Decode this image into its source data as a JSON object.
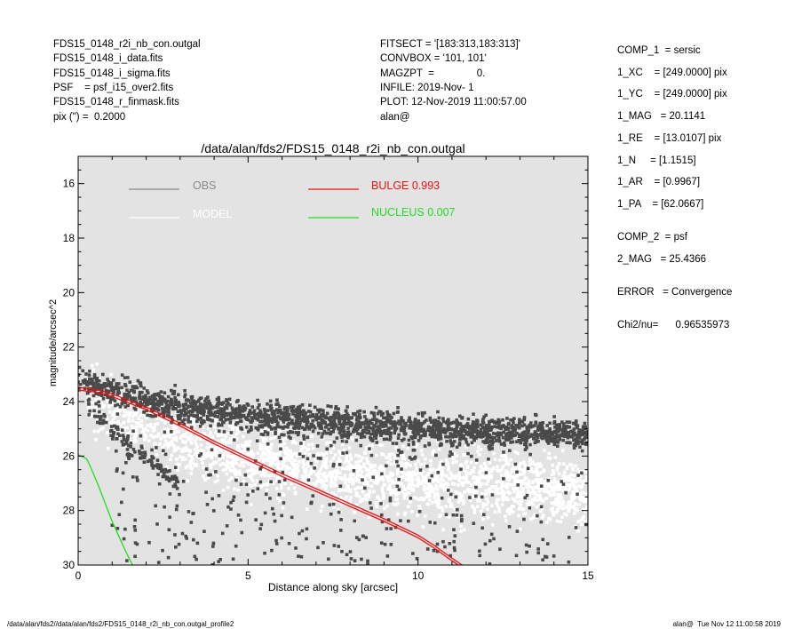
{
  "header_left": [
    "FDS15_0148_r2i_nb_con.outgal",
    "FDS15_0148_i_data.fits",
    "FDS15_0148_i_sigma.fits",
    "PSF    = psf_i15_over2.fits",
    "FDS15_0148_r_finmask.fits",
    "pix (\") =  0.2000"
  ],
  "header_mid": [
    "FITSECT = '[183:313,183:313]'",
    "CONVBOX = '101, 101'",
    "MAGZPT  =               0.",
    "INFILE: 2019-Nov- 1",
    "PLOT: 12-Nov-2019 11:00:57.00",
    "alan@"
  ],
  "params": [
    {
      "text": "COMP_1  = sersic",
      "gap": 0
    },
    {
      "text": "1_XC    = [249.0000] pix",
      "gap": 1
    },
    {
      "text": "1_YC    = [249.0000] pix",
      "gap": 1
    },
    {
      "text": "1_MAG   = 20.1141",
      "gap": 1
    },
    {
      "text": "1_RE    = [13.0107] pix",
      "gap": 1
    },
    {
      "text": "1_N     = [1.1515]",
      "gap": 1
    },
    {
      "text": "1_AR    = [0.9967]",
      "gap": 1
    },
    {
      "text": "1_PA    = [62.0667]",
      "gap": 1
    },
    {
      "text": "COMP_2  = psf",
      "gap": 1.5
    },
    {
      "text": "2_MAG   = 25.4366",
      "gap": 1
    },
    {
      "text": "ERROR   = Convergence",
      "gap": 1.5
    },
    {
      "text": "Chi2/nu=      0.96535973",
      "gap": 1.5
    }
  ],
  "footer_left": "/data/alan/fds2//data/alan/fds2/FDS15_0148_r2i_nb_con.outgal_profile2",
  "footer_right": "alan@  Tue Nov 12 11:00:58 2019",
  "chart_data": {
    "type": "scatter",
    "title": "/data/alan/fds2/FDS15_0148_r2i_nb_con.outgal",
    "xlabel": "Distance along sky [arcsec]",
    "ylabel": "magnitude/arcsec^2",
    "xlim": [
      0,
      15
    ],
    "ylim": [
      30,
      15
    ],
    "inverted_y": true,
    "xticks": [
      0,
      5,
      10,
      15
    ],
    "yticks": [
      16,
      18,
      20,
      22,
      24,
      26,
      28,
      30
    ],
    "grid": false,
    "background": "#e3e3e3",
    "legend": [
      {
        "label": "OBS",
        "color": "#888888",
        "position": "top-left"
      },
      {
        "label": "MODEL",
        "color": "#ffffff",
        "position": "top-left"
      },
      {
        "label": "BULGE  0.993",
        "color": "#ee1111",
        "position": "top-center"
      },
      {
        "label": "NUCLEUS  0.007",
        "color": "#22dd22",
        "position": "top-center"
      }
    ],
    "series": [
      {
        "name": "OBS",
        "color": "#4a4a4a",
        "bands": [
          {
            "x": [
              0.0,
              0.5,
              1.0,
              2.0,
              3.0,
              4.0,
              6.0,
              8.0,
              10.0,
              12.0,
              14.0,
              15.0
            ],
            "y": [
              23.3,
              23.4,
              23.6,
              23.95,
              24.2,
              24.4,
              24.65,
              24.85,
              25.0,
              25.1,
              25.15,
              25.2
            ],
            "spread": 0.55,
            "count": 1900
          },
          {
            "x": [
              0.3,
              0.8,
              1.5,
              2.2,
              3.0
            ],
            "y": [
              24.2,
              24.8,
              25.6,
              26.3,
              27.0
            ],
            "spread": 0.35,
            "count": 120
          }
        ],
        "sparse": {
          "xlim": [
            1,
            15
          ],
          "ylim": [
            25,
            30
          ],
          "count": 380
        }
      },
      {
        "name": "MODEL",
        "color": "#ffffff",
        "bands": [
          {
            "x": [
              0.3,
              1.0,
              2.0,
              3.0,
              4.0,
              5.0,
              6.0,
              8.0,
              10.0,
              12.0,
              14.0,
              15.0
            ],
            "y": [
              23.9,
              24.3,
              24.8,
              25.3,
              25.7,
              26.0,
              26.3,
              26.7,
              26.95,
              27.1,
              27.3,
              27.4
            ],
            "spread": 1.2,
            "count": 2300
          }
        ]
      },
      {
        "name": "BULGE  0.993",
        "color": "#ee1111",
        "x": [
          0,
          0.5,
          1,
          2,
          3,
          4,
          5,
          6,
          7,
          8,
          9,
          10,
          10.5,
          11.0,
          11.3
        ],
        "y": [
          23.48,
          23.55,
          23.72,
          24.2,
          24.8,
          25.45,
          26.05,
          26.65,
          27.2,
          27.75,
          28.3,
          28.9,
          29.3,
          29.75,
          30.0
        ]
      },
      {
        "name": "NUCLEUS  0.007",
        "color": "#22dd22",
        "x": [
          0,
          0.25,
          0.4,
          0.6,
          0.8,
          1.0,
          1.2,
          1.4,
          1.6
        ],
        "y": [
          25.95,
          26.1,
          26.5,
          27.1,
          27.75,
          28.4,
          28.95,
          29.5,
          30.0
        ]
      }
    ]
  }
}
